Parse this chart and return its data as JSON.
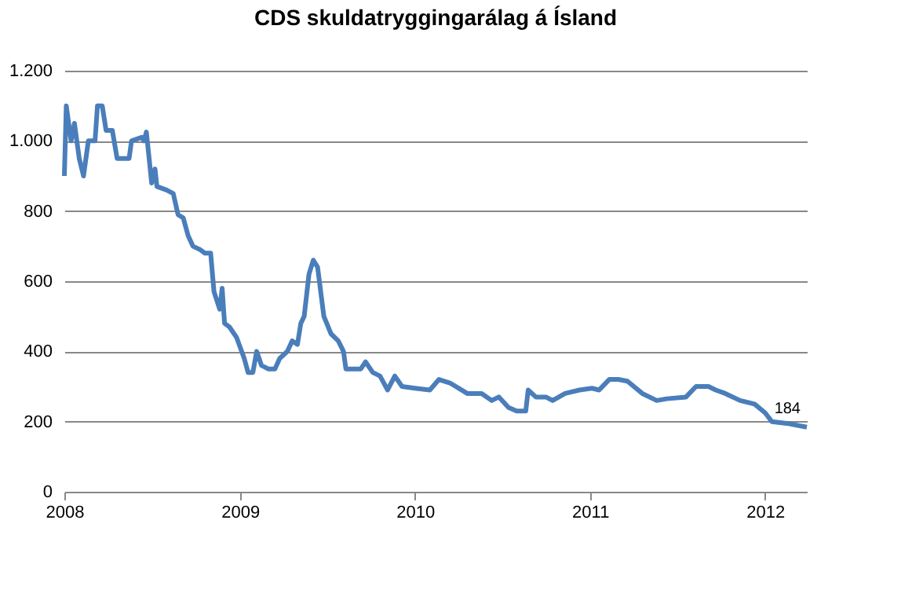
{
  "chart_data": {
    "type": "line",
    "title": "CDS skuldatryggingarálag á Ísland",
    "x": [
      "2008-01-01",
      "2008-01-05",
      "2008-01-15",
      "2008-01-22",
      "2008-02-01",
      "2008-02-10",
      "2008-02-20",
      "2008-03-05",
      "2008-03-10",
      "2008-03-20",
      "2008-03-28",
      "2008-04-10",
      "2008-04-20",
      "2008-05-15",
      "2008-05-20",
      "2008-06-10",
      "2008-06-15",
      "2008-06-20",
      "2008-06-25",
      "2008-07-01",
      "2008-07-08",
      "2008-07-12",
      "2008-08-01",
      "2008-08-15",
      "2008-08-25",
      "2008-09-05",
      "2008-09-15",
      "2008-09-25",
      "2008-10-10",
      "2008-10-20",
      "2008-11-01",
      "2008-11-08",
      "2008-11-20",
      "2008-11-25",
      "2008-11-30",
      "2008-12-10",
      "2008-12-25",
      "2009-01-10",
      "2009-01-18",
      "2009-01-28",
      "2009-02-05",
      "2009-02-15",
      "2009-03-01",
      "2009-03-15",
      "2009-03-25",
      "2009-04-10",
      "2009-04-20",
      "2009-05-01",
      "2009-05-08",
      "2009-05-15",
      "2009-05-25",
      "2009-06-03",
      "2009-06-12",
      "2009-06-25",
      "2009-07-10",
      "2009-07-25",
      "2009-08-05",
      "2009-08-10",
      "2009-09-10",
      "2009-09-20",
      "2009-10-05",
      "2009-10-20",
      "2009-11-05",
      "2009-11-20",
      "2009-12-05",
      "2010-01-01",
      "2010-02-01",
      "2010-02-20",
      "2010-03-15",
      "2010-04-20",
      "2010-05-20",
      "2010-06-10",
      "2010-06-25",
      "2010-07-15",
      "2010-08-01",
      "2010-08-20",
      "2010-08-25",
      "2010-09-10",
      "2010-10-01",
      "2010-10-15",
      "2010-11-10",
      "2010-12-10",
      "2011-01-05",
      "2011-01-20",
      "2011-02-10",
      "2011-03-01",
      "2011-03-20",
      "2011-04-20",
      "2011-05-20",
      "2011-06-10",
      "2011-07-20",
      "2011-08-10",
      "2011-09-05",
      "2011-09-20",
      "2011-10-10",
      "2011-11-10",
      "2011-12-10",
      "2012-01-01",
      "2012-01-15",
      "2012-02-15",
      "2012-03-28"
    ],
    "series": [
      {
        "color": "#4a7ebb",
        "values": [
          900,
          1100,
          1000,
          1050,
          950,
          900,
          1000,
          1000,
          1100,
          1100,
          1030,
          1030,
          950,
          950,
          1000,
          1010,
          1000,
          1025,
          960,
          880,
          920,
          870,
          860,
          850,
          790,
          780,
          730,
          700,
          690,
          680,
          680,
          570,
          520,
          580,
          480,
          470,
          440,
          380,
          340,
          340,
          400,
          360,
          350,
          350,
          380,
          400,
          430,
          420,
          480,
          500,
          620,
          660,
          640,
          500,
          450,
          430,
          400,
          350,
          350,
          370,
          340,
          330,
          290,
          330,
          300,
          295,
          290,
          320,
          310,
          280,
          280,
          260,
          270,
          240,
          230,
          230,
          290,
          270,
          270,
          260,
          280,
          290,
          295,
          290,
          320,
          320,
          315,
          280,
          260,
          265,
          270,
          300,
          300,
          290,
          280,
          260,
          250,
          225,
          200,
          195,
          184
        ]
      }
    ],
    "xlim": [
      "2008-01-01",
      "2012-03-28"
    ],
    "xticks": [
      "2008",
      "2009",
      "2010",
      "2011",
      "2012"
    ],
    "ylim": [
      0,
      1200
    ],
    "yticks": [
      0,
      200,
      400,
      600,
      800,
      {
        "value": 1000,
        "label": "1.000"
      },
      {
        "value": 1200,
        "label": "1.200"
      }
    ],
    "grid": "y",
    "marker": "none",
    "line_style": "solid",
    "annotations": [
      {
        "text": "184",
        "x": "2012-03-28",
        "y": 184
      }
    ]
  }
}
